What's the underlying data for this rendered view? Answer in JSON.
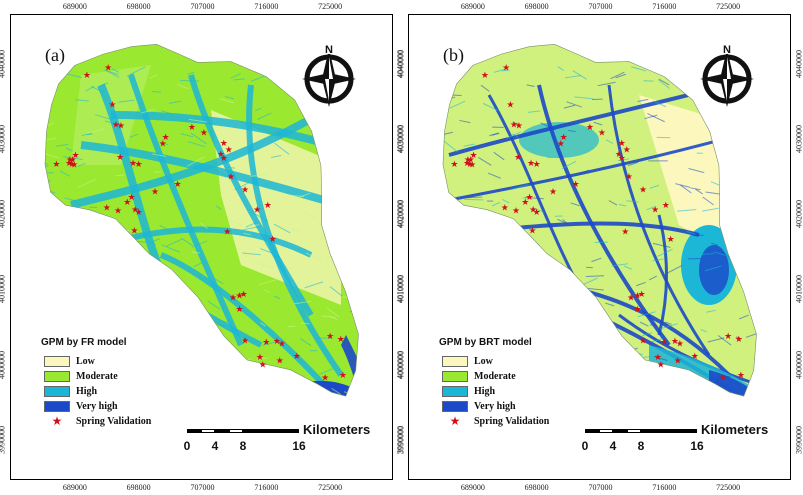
{
  "x_ticks": [
    "689000",
    "698000",
    "707000",
    "716000",
    "725000"
  ],
  "y_ticks": [
    "4040000",
    "4030000",
    "4020000",
    "4010000",
    "4000000",
    "3990000"
  ],
  "spring_validation_points": [
    [
      690700,
      4038500
    ],
    [
      693700,
      4039500
    ],
    [
      686400,
      4026700
    ],
    [
      688700,
      4027300
    ],
    [
      688900,
      4026600
    ],
    [
      688300,
      4027300
    ],
    [
      688600,
      4026700
    ],
    [
      689100,
      4027900
    ],
    [
      688200,
      4026800
    ],
    [
      694300,
      4034600
    ],
    [
      694800,
      4031900
    ],
    [
      695500,
      4031800
    ],
    [
      695400,
      4027600
    ],
    [
      697200,
      4026800
    ],
    [
      698000,
      4026700
    ],
    [
      701800,
      4030300
    ],
    [
      701400,
      4029400
    ],
    [
      697000,
      4022300
    ],
    [
      696400,
      4021600
    ],
    [
      697500,
      4020600
    ],
    [
      693500,
      4020900
    ],
    [
      695100,
      4020500
    ],
    [
      698000,
      4020300
    ],
    [
      697400,
      4017800
    ],
    [
      700300,
      4023000
    ],
    [
      703500,
      4024000
    ],
    [
      705500,
      4031600
    ],
    [
      707200,
      4030900
    ],
    [
      710000,
      4029500
    ],
    [
      709600,
      4028000
    ],
    [
      710700,
      4028600
    ],
    [
      710000,
      4027500
    ],
    [
      711000,
      4025000
    ],
    [
      713000,
      4023300
    ],
    [
      714700,
      4020600
    ],
    [
      710500,
      4017700
    ],
    [
      716200,
      4021200
    ],
    [
      716900,
      4016700
    ],
    [
      711300,
      4008900
    ],
    [
      712200,
      4009200
    ],
    [
      712800,
      4009400
    ],
    [
      712200,
      4007400
    ],
    [
      713000,
      4003200
    ],
    [
      716000,
      4003000
    ],
    [
      717500,
      4003100
    ],
    [
      718200,
      4002800
    ],
    [
      715100,
      4001000
    ],
    [
      717900,
      4000500
    ],
    [
      715500,
      4000000
    ],
    [
      720300,
      4001100
    ],
    [
      725000,
      4003800
    ],
    [
      726500,
      4003400
    ],
    [
      724300,
      3998300
    ],
    [
      726800,
      3998600
    ]
  ],
  "panels": [
    {
      "label": "(a)",
      "legend_title": "GPM by FR model",
      "classes": [
        {
          "label": "Low",
          "color": "#fbf7bd"
        },
        {
          "label": "Moderate",
          "color": "#9be830"
        },
        {
          "label": "High",
          "color": "#1cb6d6"
        },
        {
          "label": "Very high",
          "color": "#1c49c8"
        }
      ],
      "spring_label": "Spring Validation",
      "scale": {
        "ticks": [
          "0",
          "4",
          "8",
          "16"
        ],
        "unit": "Kilometers"
      }
    },
    {
      "label": "(b)",
      "legend_title": "GPM by BRT model",
      "classes": [
        {
          "label": "Low",
          "color": "#fbf7bd"
        },
        {
          "label": "Moderate",
          "color": "#9be830"
        },
        {
          "label": "High",
          "color": "#1cb6d6"
        },
        {
          "label": "Very high",
          "color": "#1c49c8"
        }
      ],
      "spring_label": "Spring Validation",
      "scale": {
        "ticks": [
          "0",
          "4",
          "8",
          "16"
        ],
        "unit": "Kilometers"
      }
    }
  ],
  "colors": {
    "spring_star": "#d0101a"
  },
  "north_arrow_icon": "north-arrow-icon"
}
